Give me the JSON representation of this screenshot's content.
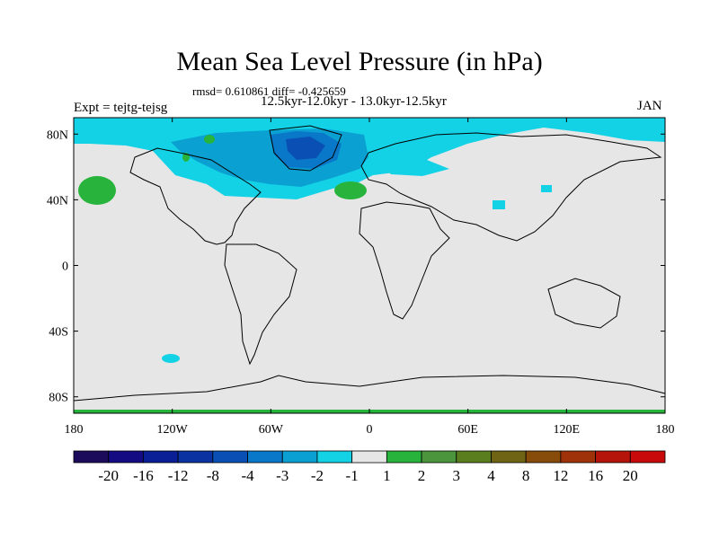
{
  "chart_data": {
    "type": "heatmap",
    "title": "Mean Sea Level Pressure (in hPa)",
    "stats": "rmsd= 0.610861 diff= -0.425659",
    "interval": "12.5kyr-12.0kyr - 13.0kyr-12.5kyr",
    "experiment": "Expt = tejtg-tejsg",
    "month": "JAN",
    "x_ticks": [
      "180",
      "120W",
      "60W",
      "0",
      "60E",
      "120E",
      "180"
    ],
    "x_tick_values": [
      -180,
      -120,
      -60,
      0,
      60,
      120,
      180
    ],
    "y_ticks": [
      "80N",
      "40N",
      "0",
      "40S",
      "80S"
    ],
    "y_tick_values": [
      80,
      40,
      0,
      -40,
      -80
    ],
    "xlim": [
      -180,
      180
    ],
    "ylim": [
      -90,
      90
    ],
    "colorbar": {
      "labels": [
        "-20",
        "-16",
        "-12",
        "-8",
        "-4",
        "-3",
        "-2",
        "-1",
        "1",
        "2",
        "3",
        "4",
        "8",
        "12",
        "16",
        "20"
      ],
      "colors": [
        "#1c0a5a",
        "#140a82",
        "#0a1e96",
        "#0a32a0",
        "#0a50b4",
        "#0a78c8",
        "#0aa0d2",
        "#14d2e6",
        "#e6e6e6",
        "#28b43c",
        "#4b963c",
        "#5a7d1e",
        "#6e6414",
        "#874b0a",
        "#a0320a",
        "#b4140a",
        "#c80a0a"
      ]
    }
  }
}
